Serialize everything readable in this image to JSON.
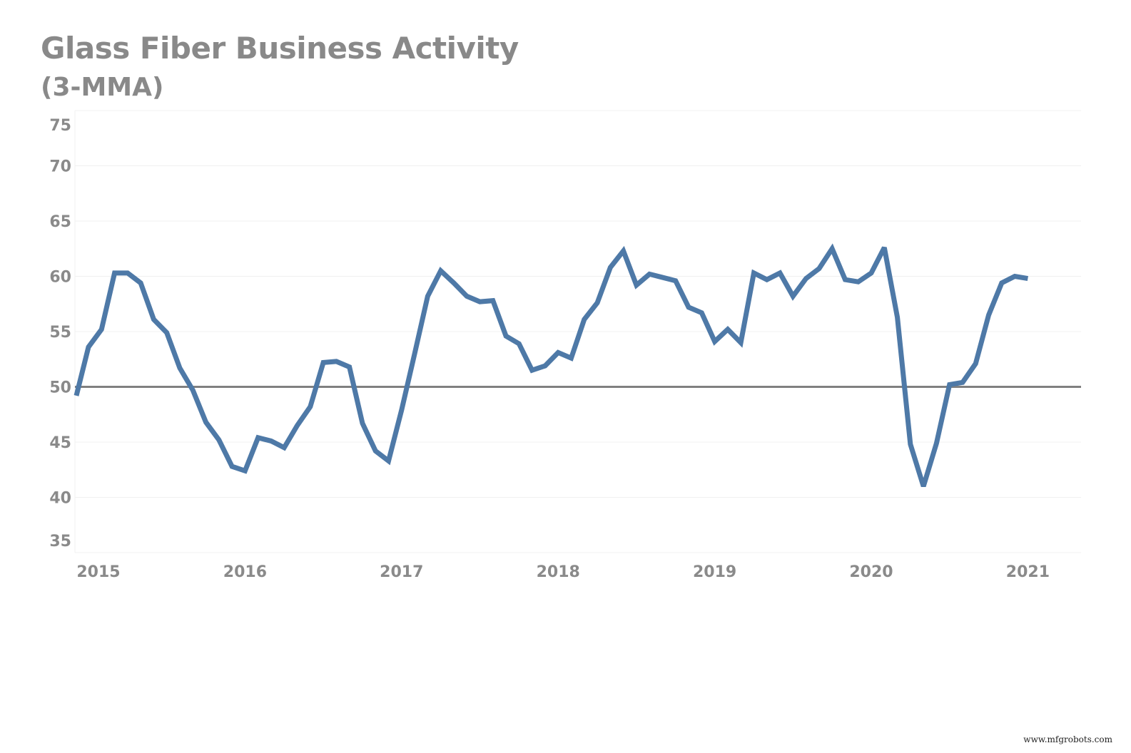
{
  "chart_data": {
    "type": "line",
    "title": "Glass Fiber Business Activity",
    "subtitle": "(3-MMA)",
    "xlabel": "",
    "ylabel": "",
    "ylim": [
      35,
      75
    ],
    "yticks": [
      75,
      70,
      65,
      60,
      55,
      50,
      45,
      40,
      35
    ],
    "xticks": [
      "2015",
      "2016",
      "2017",
      "2018",
      "2019",
      "2020",
      "2021"
    ],
    "grid": true,
    "reference_line": {
      "value": 50,
      "color": "#808080"
    },
    "line_color": "#4e79a7",
    "x": [
      "2014-12",
      "2015-01",
      "2015-02",
      "2015-03",
      "2015-04",
      "2015-05",
      "2015-06",
      "2015-07",
      "2015-08",
      "2015-09",
      "2015-10",
      "2015-11",
      "2015-12",
      "2016-01",
      "2016-02",
      "2016-03",
      "2016-04",
      "2016-05",
      "2016-06",
      "2016-07",
      "2016-08",
      "2016-09",
      "2016-10",
      "2016-11",
      "2016-12",
      "2017-01",
      "2017-02",
      "2017-03",
      "2017-04",
      "2017-05",
      "2017-06",
      "2017-07",
      "2017-08",
      "2017-09",
      "2017-10",
      "2017-11",
      "2017-12",
      "2018-01",
      "2018-02",
      "2018-03",
      "2018-04",
      "2018-05",
      "2018-06",
      "2018-07",
      "2018-08",
      "2018-09",
      "2018-10",
      "2018-11",
      "2018-12",
      "2019-01",
      "2019-02",
      "2019-03",
      "2019-04",
      "2019-05",
      "2019-06",
      "2019-07",
      "2019-08",
      "2019-09",
      "2019-10",
      "2019-11",
      "2019-12",
      "2020-01",
      "2020-02",
      "2020-03",
      "2020-04",
      "2020-05",
      "2020-06",
      "2020-07",
      "2020-08",
      "2020-09",
      "2020-10",
      "2020-11",
      "2020-12",
      "2021-01"
    ],
    "values": [
      49.2,
      53.6,
      55.2,
      60.3,
      60.3,
      59.4,
      56.1,
      54.9,
      51.7,
      49.7,
      46.8,
      45.2,
      42.8,
      42.4,
      45.4,
      45.1,
      44.5,
      46.5,
      48.2,
      52.2,
      52.3,
      51.8,
      46.7,
      44.2,
      43.3,
      47.9,
      53.0,
      58.2,
      60.5,
      59.4,
      58.2,
      57.7,
      57.8,
      54.6,
      53.9,
      51.5,
      51.9,
      53.1,
      52.6,
      56.1,
      57.6,
      60.8,
      62.3,
      59.2,
      60.2,
      59.9,
      59.6,
      57.2,
      56.7,
      54.1,
      55.2,
      54.0,
      60.3,
      59.7,
      60.3,
      58.2,
      59.8,
      60.7,
      62.5,
      59.7,
      59.5,
      60.3,
      62.6,
      56.3,
      44.8,
      41.0,
      44.9,
      50.2,
      50.4,
      52.1,
      56.5,
      59.4,
      60.0,
      59.8
    ]
  },
  "watermark": "www.mfgrobots.com"
}
